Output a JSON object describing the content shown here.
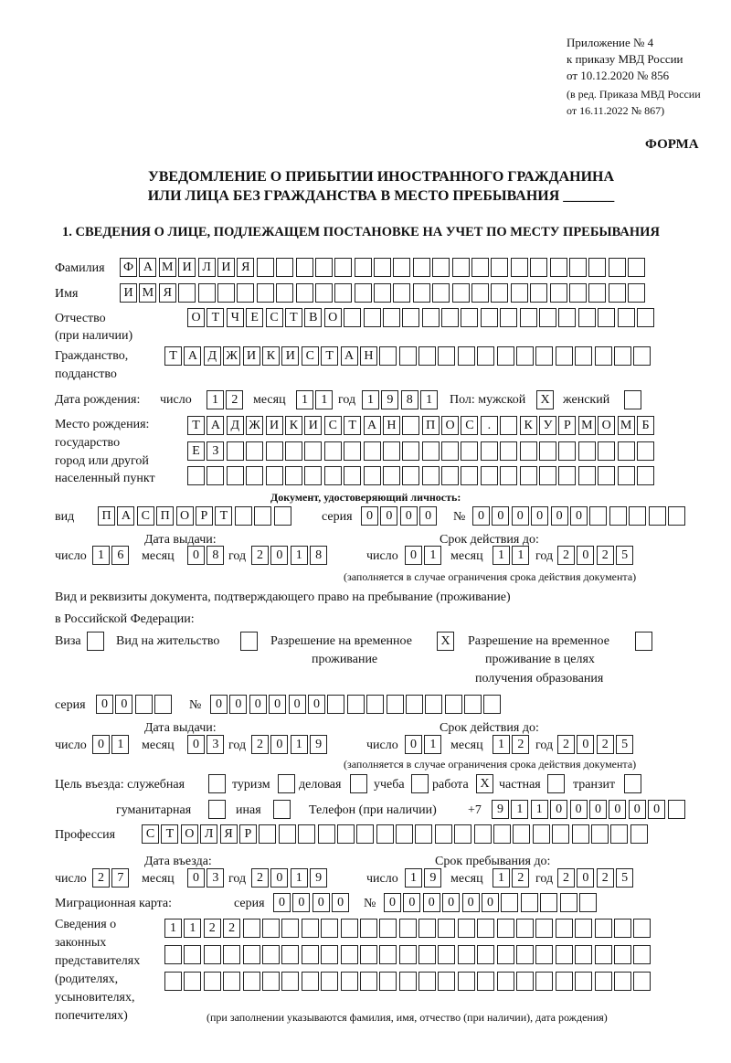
{
  "header": {
    "line1": "Приложение № 4",
    "line2": "к приказу МВД России",
    "line3": "от 10.12.2020 № 856",
    "line4": "(в ред. Приказа МВД России",
    "line5": "от 16.11.2022 № 867)",
    "forma": "ФОРМА"
  },
  "title": {
    "line1": "УВЕДОМЛЕНИЕ О ПРИБЫТИИ ИНОСТРАННОГО ГРАЖДАНИНА",
    "line2": "ИЛИ ЛИЦА БЕЗ ГРАЖДАНСТВА В МЕСТО ПРЕБЫВАНИЯ _______"
  },
  "section1": "1. СВЕДЕНИЯ О ЛИЦЕ, ПОДЛЕЖАЩЕМ ПОСТАНОВКЕ НА УЧЕТ ПО МЕСТУ ПРЕБЫВАНИЯ",
  "labels": {
    "surname": "Фамилия",
    "name": "Имя",
    "patronymic1": "Отчество",
    "patronymic2": "(при наличии)",
    "citizenship1": "Гражданство,",
    "citizenship2": "подданство",
    "birth": "Дата рождения:",
    "day": "число",
    "month": "месяц",
    "year": "год",
    "sex": "Пол: мужской",
    "female": "женский",
    "bp1": "Место рождения:",
    "bp2": "государство",
    "bp3": "город или другой",
    "bp4": "населенный пункт",
    "iddoc": "Документ, удостоверяющий личность:",
    "kind": "вид",
    "series": "серия",
    "number": "№",
    "issue_date": "Дата выдачи:",
    "valid_until": "Срок действия до:",
    "valid_note": "(заполняется в случае ограничения срока действия документа)",
    "right_doc1": "Вид и реквизиты документа, подтверждающего право на пребывание (проживание)",
    "right_doc2": "в Российской Федерации:",
    "visa": "Виза",
    "residence": "Вид на жительство",
    "trp1": "Разрешение на временное",
    "trp2": "проживание",
    "trpe1": "Разрешение на временное",
    "trpe2": "проживание в целях",
    "trpe3": "получения образования",
    "purpose": "Цель въезда: служебная",
    "tourism": "туризм",
    "business": "деловая",
    "study": "учеба",
    "work": "работа",
    "private": "частная",
    "transit": "транзит",
    "humanitarian": "гуманитарная",
    "other": "иная",
    "phone": "Телефон (при наличии)",
    "phone_prefix": "+7",
    "profession": "Профессия",
    "entry_date": "Дата въезда:",
    "stay_until": "Срок пребывания до:",
    "migration": "Миграционная карта:",
    "reps1": "Сведения о",
    "reps2": "законных",
    "reps3": "представителях",
    "reps4": "(родителях,",
    "reps5": "усыновителях,",
    "reps6": "попечителях)",
    "reps_note": "(при заполнении указываются фамилия, имя, отчество (при наличии), дата рождения)"
  },
  "cells": {
    "surname": [
      "Ф",
      "А",
      "М",
      "И",
      "Л",
      "И",
      "Я",
      "",
      "",
      "",
      "",
      "",
      "",
      "",
      "",
      "",
      "",
      "",
      "",
      "",
      "",
      "",
      "",
      "",
      "",
      "",
      ""
    ],
    "name": [
      "И",
      "М",
      "Я",
      "",
      "",
      "",
      "",
      "",
      "",
      "",
      "",
      "",
      "",
      "",
      "",
      "",
      "",
      "",
      "",
      "",
      "",
      "",
      "",
      "",
      "",
      "",
      ""
    ],
    "patronymic": [
      "О",
      "Т",
      "Ч",
      "Е",
      "С",
      "Т",
      "В",
      "О",
      "",
      "",
      "",
      "",
      "",
      "",
      "",
      "",
      "",
      "",
      "",
      "",
      "",
      "",
      "",
      ""
    ],
    "citizenship": [
      "Т",
      "А",
      "Д",
      "Ж",
      "И",
      "К",
      "И",
      "С",
      "Т",
      "А",
      "Н",
      "",
      "",
      "",
      "",
      "",
      "",
      "",
      "",
      "",
      "",
      "",
      "",
      "",
      ""
    ],
    "birth_day": [
      "1",
      "2"
    ],
    "birth_month": [
      "1",
      "1"
    ],
    "birth_year": [
      "1",
      "9",
      "8",
      "1"
    ],
    "sex_male": [
      "X"
    ],
    "sex_female": [
      ""
    ],
    "birthplace1": [
      "Т",
      "А",
      "Д",
      "Ж",
      "И",
      "К",
      "И",
      "С",
      "Т",
      "А",
      "Н",
      "",
      "П",
      "О",
      "С",
      ".",
      "",
      "К",
      "У",
      "Р",
      "М",
      "О",
      "М",
      "Б"
    ],
    "birthplace2": [
      "Е",
      "З",
      "",
      "",
      "",
      "",
      "",
      "",
      "",
      "",
      "",
      "",
      "",
      "",
      "",
      "",
      "",
      "",
      "",
      "",
      "",
      "",
      "",
      ""
    ],
    "birthplace3": [
      "",
      "",
      "",
      "",
      "",
      "",
      "",
      "",
      "",
      "",
      "",
      "",
      "",
      "",
      "",
      "",
      "",
      "",
      "",
      "",
      "",
      "",
      "",
      ""
    ],
    "id_kind": [
      "П",
      "А",
      "С",
      "П",
      "О",
      "Р",
      "Т",
      "",
      "",
      ""
    ],
    "id_series": [
      "0",
      "0",
      "0",
      "0"
    ],
    "id_number": [
      "0",
      "0",
      "0",
      "0",
      "0",
      "0",
      "",
      "",
      "",
      "",
      ""
    ],
    "id_issue_day": [
      "1",
      "6"
    ],
    "id_issue_month": [
      "0",
      "8"
    ],
    "id_issue_year": [
      "2",
      "0",
      "1",
      "8"
    ],
    "id_valid_day": [
      "0",
      "1"
    ],
    "id_valid_month": [
      "1",
      "1"
    ],
    "id_valid_year": [
      "2",
      "0",
      "2",
      "5"
    ],
    "visa": [
      ""
    ],
    "residence": [
      ""
    ],
    "trp": [
      "X"
    ],
    "trpe": [
      ""
    ],
    "rd_series": [
      "0",
      "0",
      "",
      ""
    ],
    "rd_number": [
      "0",
      "0",
      "0",
      "0",
      "0",
      "0",
      "",
      "",
      "",
      "",
      "",
      "",
      "",
      "",
      ""
    ],
    "rd_issue_day": [
      "0",
      "1"
    ],
    "rd_issue_month": [
      "0",
      "3"
    ],
    "rd_issue_year": [
      "2",
      "0",
      "1",
      "9"
    ],
    "rd_valid_day": [
      "0",
      "1"
    ],
    "rd_valid_month": [
      "1",
      "2"
    ],
    "rd_valid_year": [
      "2",
      "0",
      "2",
      "5"
    ],
    "p_service": [
      ""
    ],
    "p_tourism": [
      ""
    ],
    "p_business": [
      ""
    ],
    "p_study": [
      ""
    ],
    "p_work": [
      "X"
    ],
    "p_private": [
      ""
    ],
    "p_transit": [
      ""
    ],
    "p_humanitarian": [
      ""
    ],
    "p_other": [
      ""
    ],
    "phone": [
      "9",
      "1",
      "1",
      "0",
      "0",
      "0",
      "0",
      "0",
      "0",
      ""
    ],
    "profession": [
      "С",
      "Т",
      "О",
      "Л",
      "Я",
      "Р",
      "",
      "",
      "",
      "",
      "",
      "",
      "",
      "",
      "",
      "",
      "",
      "",
      "",
      "",
      "",
      "",
      "",
      "",
      "",
      ""
    ],
    "entry_day": [
      "2",
      "7"
    ],
    "entry_month": [
      "0",
      "3"
    ],
    "entry_year": [
      "2",
      "0",
      "1",
      "9"
    ],
    "stay_day": [
      "1",
      "9"
    ],
    "stay_month": [
      "1",
      "2"
    ],
    "stay_year": [
      "2",
      "0",
      "2",
      "5"
    ],
    "mig_series": [
      "0",
      "0",
      "0",
      "0"
    ],
    "mig_number": [
      "0",
      "0",
      "0",
      "0",
      "0",
      "0",
      "",
      "",
      "",
      "",
      ""
    ],
    "reps1": [
      "1",
      "1",
      "2",
      "2",
      "",
      "",
      "",
      "",
      "",
      "",
      "",
      "",
      "",
      "",
      "",
      "",
      "",
      "",
      "",
      "",
      "",
      "",
      "",
      "",
      ""
    ],
    "reps2": [
      "",
      "",
      "",
      "",
      "",
      "",
      "",
      "",
      "",
      "",
      "",
      "",
      "",
      "",
      "",
      "",
      "",
      "",
      "",
      "",
      "",
      "",
      "",
      "",
      ""
    ],
    "reps3": [
      "",
      "",
      "",
      "",
      "",
      "",
      "",
      "",
      "",
      "",
      "",
      "",
      "",
      "",
      "",
      "",
      "",
      "",
      "",
      "",
      "",
      "",
      "",
      "",
      ""
    ]
  }
}
